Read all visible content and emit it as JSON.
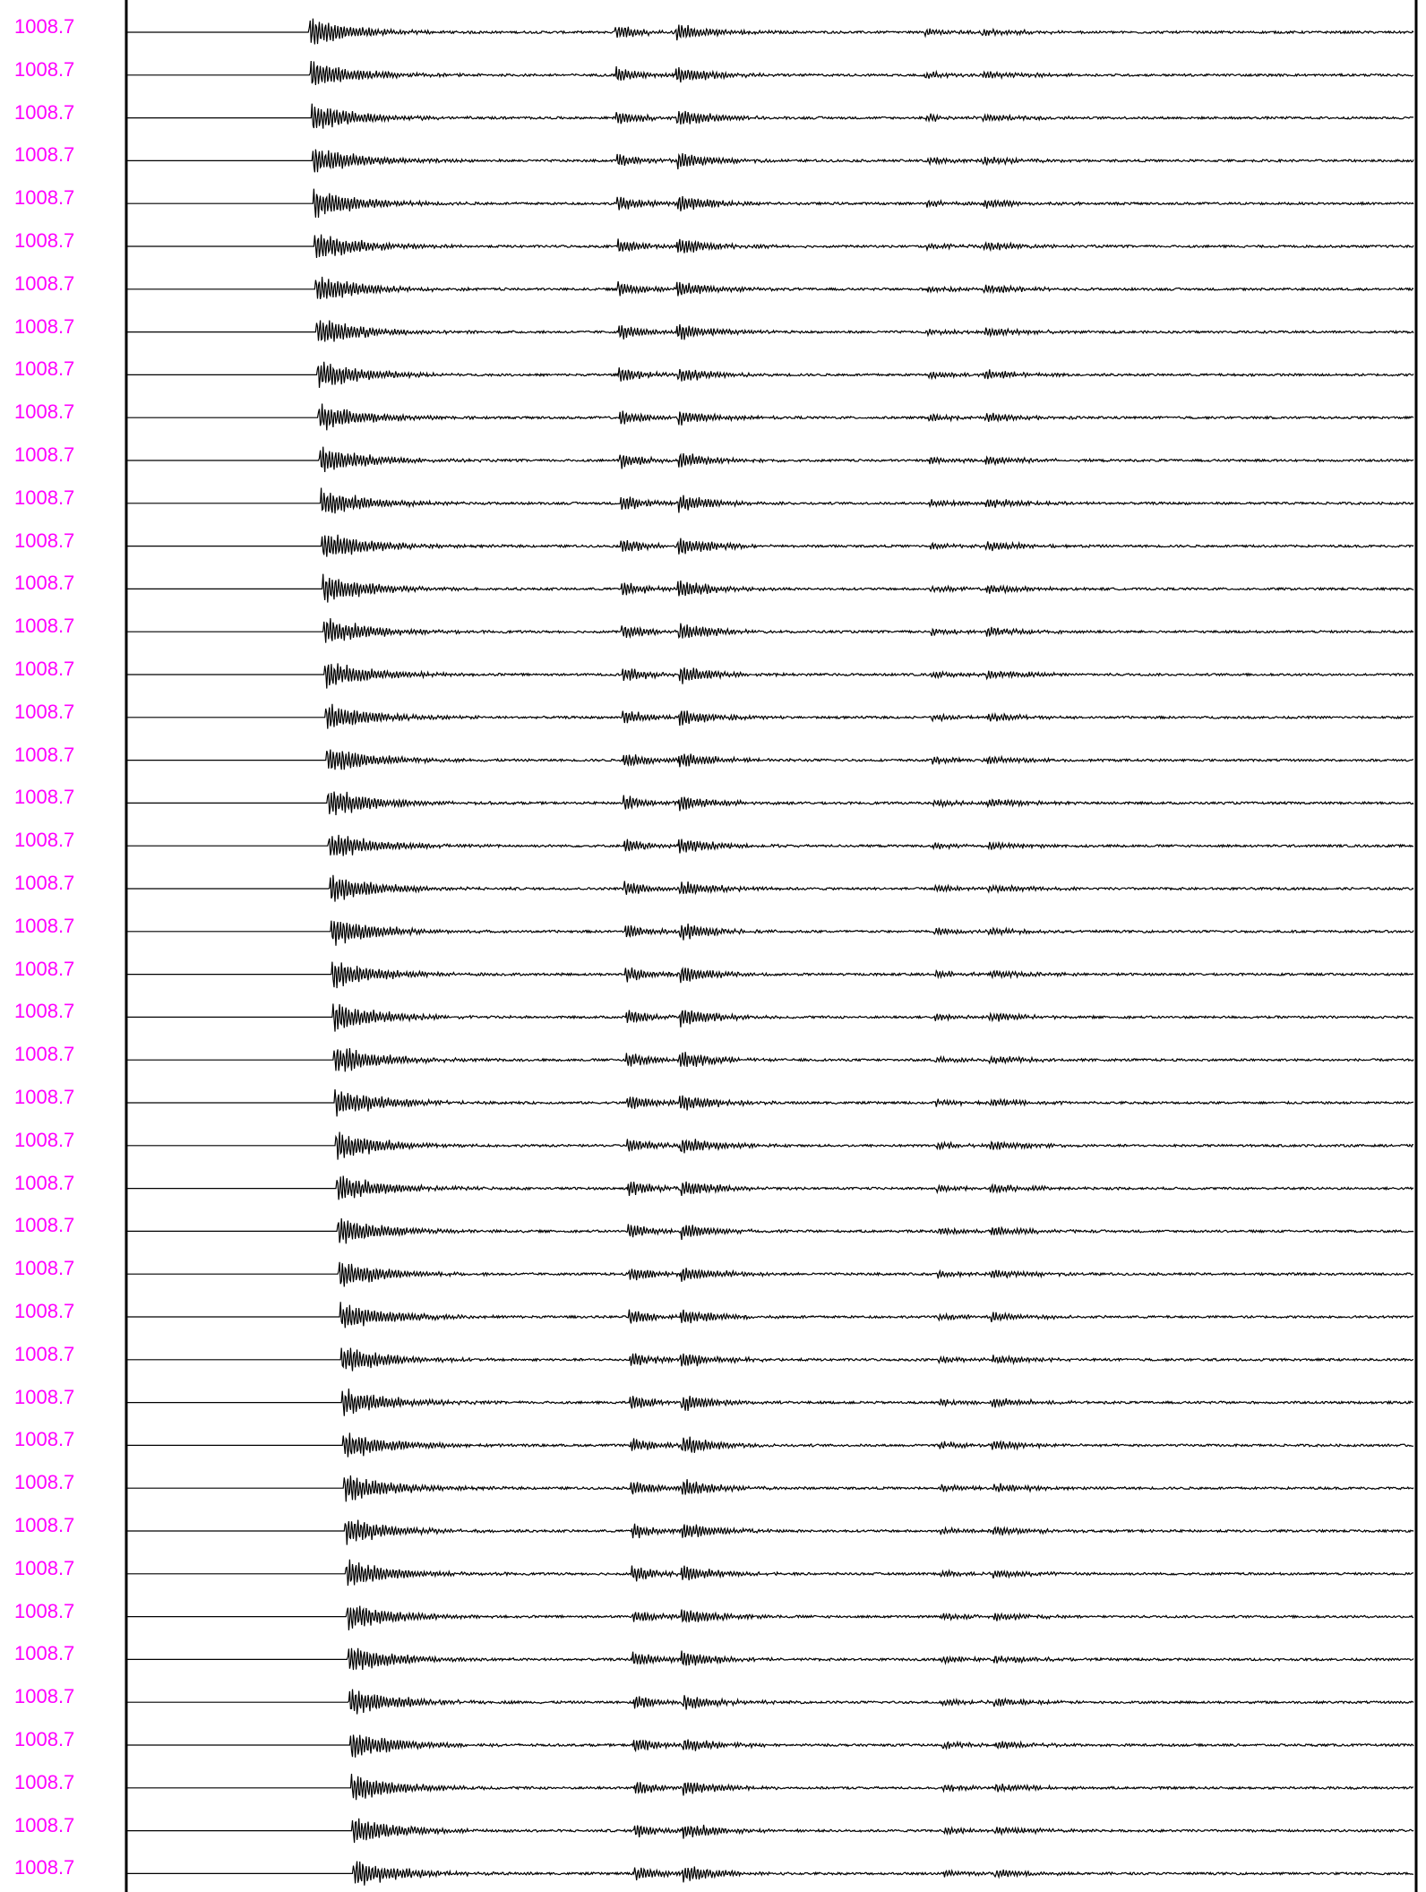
{
  "colors": {
    "label": "#ff00ff",
    "trace": "#000000",
    "frame": "#000000",
    "background": "#ffffff"
  },
  "chart_data": {
    "type": "line",
    "description_of_content": "stacked seismic record section",
    "trace_labels": [
      "1008.7",
      "1008.7",
      "1008.7",
      "1008.7",
      "1008.7",
      "1008.7",
      "1008.7",
      "1008.7",
      "1008.7",
      "1008.7",
      "1008.7",
      "1008.7",
      "1008.7",
      "1008.7",
      "1008.7",
      "1008.7",
      "1008.7",
      "1008.7",
      "1008.7",
      "1008.7",
      "1008.7",
      "1008.7",
      "1008.7",
      "1008.7",
      "1008.7",
      "1008.7",
      "1008.7",
      "1008.7",
      "1008.7",
      "1008.7",
      "1008.7",
      "1008.7",
      "1008.7",
      "1008.7",
      "1008.7",
      "1008.7",
      "1008.7",
      "1008.7",
      "1008.7",
      "1008.7",
      "1008.7",
      "1008.7",
      "1008.7",
      "1008.7"
    ],
    "trace_count": 44,
    "x_range": [
      0,
      1
    ],
    "phases": [
      {
        "onset_first": 0.142,
        "onset_last": 0.176,
        "amplitude": 1.0,
        "decay": 0.012,
        "duration": 0.06
      },
      {
        "onset_first": 0.38,
        "onset_last": 0.395,
        "amplitude": 0.55,
        "decay": 0.008,
        "duration": 0.03
      },
      {
        "onset_first": 0.427,
        "onset_last": 0.432,
        "amplitude": 0.6,
        "decay": 0.01,
        "duration": 0.045
      },
      {
        "onset_first": 0.62,
        "onset_last": 0.635,
        "amplitude": 0.25,
        "decay": 0.01,
        "duration": 0.03
      },
      {
        "onset_first": 0.665,
        "onset_last": 0.675,
        "amplitude": 0.3,
        "decay": 0.012,
        "duration": 0.05
      }
    ],
    "grid": false,
    "legend": "none"
  }
}
